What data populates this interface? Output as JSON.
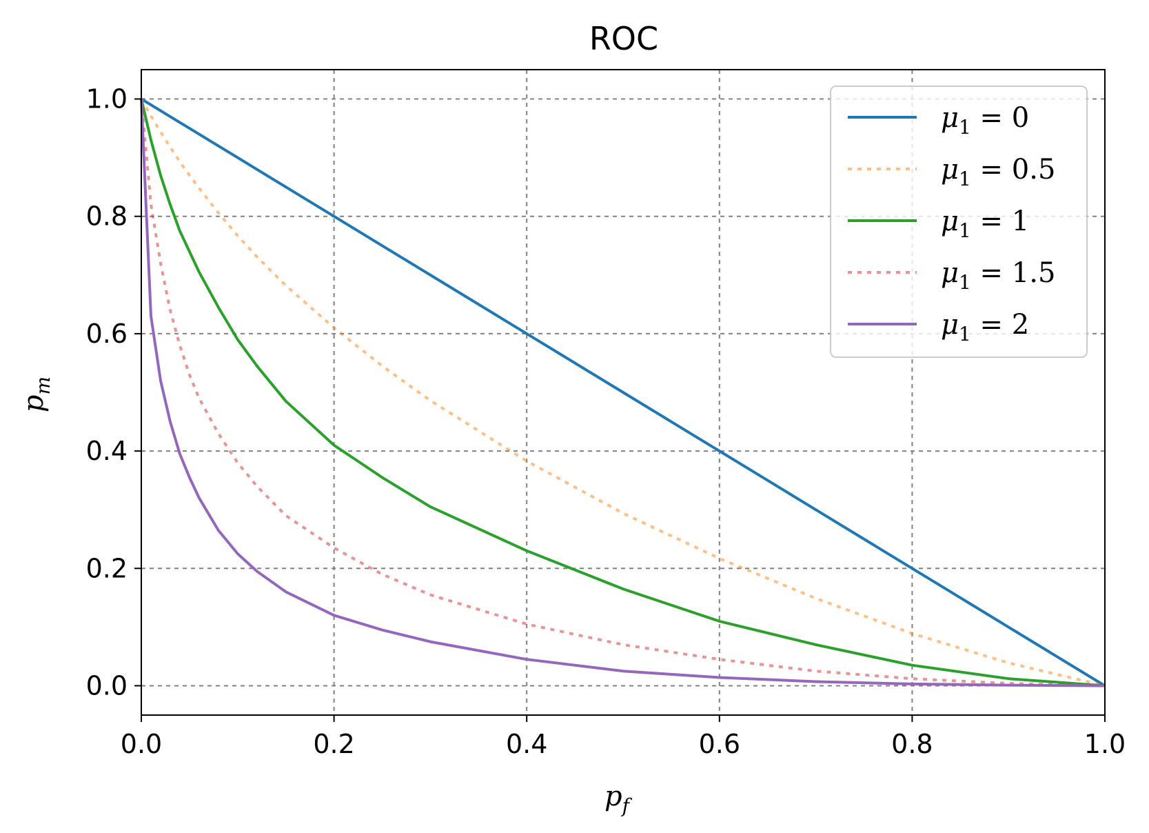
{
  "chart_data": {
    "type": "line",
    "title": "ROC",
    "xlabel": {
      "base": "p",
      "sub": "f"
    },
    "ylabel": {
      "base": "p",
      "sub": "m"
    },
    "xlim": [
      0,
      1
    ],
    "ylim": [
      -0.05,
      1.05
    ],
    "xticks": [
      0,
      0.2,
      0.4,
      0.6,
      0.8,
      1
    ],
    "yticks": [
      0,
      0.2,
      0.4,
      0.6,
      0.8,
      1
    ],
    "xtick_labels": [
      "0.0",
      "0.2",
      "0.4",
      "0.6",
      "0.8",
      "1.0"
    ],
    "ytick_labels": [
      "0.0",
      "0.2",
      "0.4",
      "0.6",
      "0.8",
      "1.0"
    ],
    "grid": true,
    "legend_position": "top-right",
    "x": [
      0,
      0.01,
      0.02,
      0.03,
      0.04,
      0.05,
      0.06,
      0.08,
      0.1,
      0.12,
      0.15,
      0.2,
      0.25,
      0.3,
      0.4,
      0.5,
      0.6,
      0.7,
      0.8,
      0.9,
      1.0
    ],
    "series": [
      {
        "name_base": "μ",
        "name_sub": "1",
        "name_rest": " = 0",
        "color": "#1f77b4",
        "dashed": false,
        "opacity": 1,
        "values": [
          1.0,
          0.99,
          0.98,
          0.97,
          0.96,
          0.95,
          0.94,
          0.92,
          0.9,
          0.88,
          0.85,
          0.8,
          0.75,
          0.7,
          0.6,
          0.5,
          0.4,
          0.3,
          0.2,
          0.1,
          0.0
        ]
      },
      {
        "name_base": "μ",
        "name_sub": "1",
        "name_rest": " = 0.5",
        "color": "#ff7f0e",
        "dashed": true,
        "opacity": 0.5,
        "values": [
          1.0,
          0.971,
          0.944,
          0.918,
          0.893,
          0.87,
          0.848,
          0.806,
          0.767,
          0.731,
          0.682,
          0.61,
          0.545,
          0.486,
          0.383,
          0.294,
          0.217,
          0.149,
          0.089,
          0.039,
          0.0
        ]
      },
      {
        "name_base": "μ",
        "name_sub": "1",
        "name_rest": " = 1",
        "color": "#2ca02c",
        "dashed": false,
        "opacity": 1,
        "values": [
          1.0,
          0.93,
          0.87,
          0.82,
          0.775,
          0.74,
          0.705,
          0.645,
          0.59,
          0.545,
          0.485,
          0.41,
          0.355,
          0.305,
          0.23,
          0.165,
          0.11,
          0.07,
          0.035,
          0.012,
          0.0
        ]
      },
      {
        "name_base": "μ",
        "name_sub": "1",
        "name_rest": " = 1.5",
        "color": "#d62728",
        "dashed": true,
        "opacity": 0.5,
        "values": [
          1.0,
          0.82,
          0.72,
          0.64,
          0.58,
          0.53,
          0.49,
          0.43,
          0.38,
          0.34,
          0.29,
          0.235,
          0.19,
          0.155,
          0.105,
          0.07,
          0.045,
          0.025,
          0.012,
          0.004,
          0.0
        ]
      },
      {
        "name_base": "μ",
        "name_sub": "1",
        "name_rest": " = 2",
        "color": "#9467bd",
        "dashed": false,
        "opacity": 1,
        "values": [
          1.0,
          0.63,
          0.52,
          0.45,
          0.395,
          0.355,
          0.32,
          0.265,
          0.225,
          0.195,
          0.16,
          0.12,
          0.095,
          0.075,
          0.045,
          0.025,
          0.014,
          0.007,
          0.003,
          0.001,
          0.0
        ]
      }
    ]
  }
}
